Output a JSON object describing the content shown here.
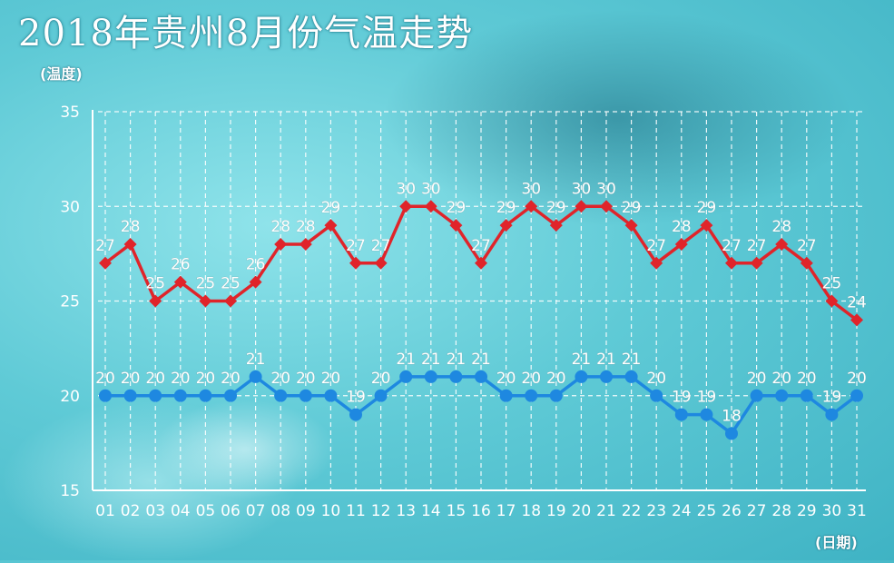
{
  "chart_data": {
    "type": "line",
    "title": "2018年贵州8月份气温走势",
    "ylabel": "(温度)",
    "xlabel": "(日期)",
    "ylim": [
      15,
      35
    ],
    "yticks": [
      15,
      20,
      25,
      30,
      35
    ],
    "categories": [
      "01",
      "02",
      "03",
      "04",
      "05",
      "06",
      "07",
      "08",
      "09",
      "10",
      "11",
      "12",
      "13",
      "14",
      "15",
      "16",
      "17",
      "18",
      "19",
      "20",
      "21",
      "22",
      "23",
      "24",
      "25",
      "26",
      "27",
      "28",
      "29",
      "30",
      "31"
    ],
    "series": [
      {
        "color": "#e0242a",
        "marker": "diamond",
        "values": [
          27,
          28,
          25,
          26,
          25,
          25,
          26,
          28,
          28,
          29,
          27,
          27,
          30,
          30,
          29,
          27,
          29,
          30,
          29,
          30,
          30,
          29,
          27,
          28,
          29,
          27,
          27,
          28,
          27,
          25,
          24
        ]
      },
      {
        "color": "#1e88e0",
        "marker": "circle",
        "values": [
          20,
          20,
          20,
          20,
          20,
          20,
          21,
          20,
          20,
          20,
          19,
          20,
          21,
          21,
          21,
          21,
          20,
          20,
          20,
          21,
          21,
          21,
          20,
          19,
          19,
          18,
          20,
          20,
          20,
          19,
          20
        ]
      }
    ],
    "grid": true,
    "legend": "none"
  }
}
